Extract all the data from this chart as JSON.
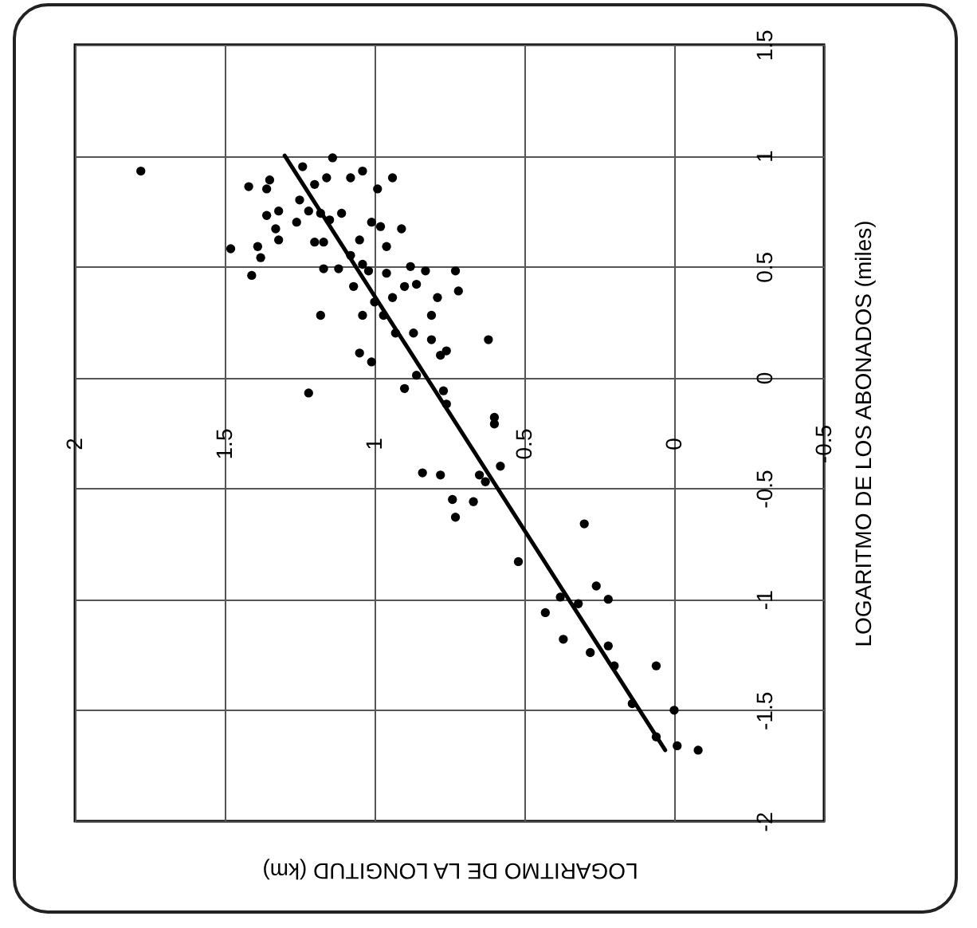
{
  "chart_data": {
    "type": "scatter",
    "xlabel": "LOGARITMO DE LA LONGITUD (km)",
    "ylabel": "LOGARITMO DE LOS ABONADOS (miles)",
    "xlim": [
      2,
      -0.5
    ],
    "xticks": [
      2,
      1.5,
      1,
      0.5,
      0,
      -0.5
    ],
    "ylim": [
      -2,
      1.5
    ],
    "yticks": [
      -2,
      -1.5,
      -1,
      -0.5,
      0,
      0.5,
      1,
      1.5
    ],
    "grid": true,
    "series": [
      {
        "marker": "circle",
        "color": "#000000",
        "x": [
          1.78,
          1.42,
          1.36,
          1.35,
          1.24,
          1.14,
          1.2,
          1.16,
          1.08,
          1.04,
          0.94,
          0.99,
          1.32,
          1.36,
          1.25,
          1.22,
          1.18,
          1.15,
          1.11,
          1.33,
          1.32,
          1.26,
          1.2,
          1.17,
          1.05,
          1.01,
          0.98,
          0.91,
          0.96,
          1.48,
          1.39,
          1.38,
          1.41,
          1.17,
          1.12,
          1.08,
          1.04,
          1.02,
          0.96,
          1.07,
          1.0,
          0.94,
          0.9,
          0.86,
          0.88,
          0.83,
          0.73,
          0.79,
          1.18,
          1.04,
          0.97,
          0.93,
          0.87,
          0.81,
          0.81,
          0.76,
          0.78,
          1.05,
          1.01,
          0.86,
          0.9,
          1.22,
          0.77,
          0.76,
          0.72,
          0.62,
          0.6,
          0.6,
          0.84,
          0.78,
          0.65,
          0.63,
          0.58,
          0.74,
          0.67,
          0.73,
          0.3,
          0.52,
          0.38,
          0.32,
          0.26,
          0.22,
          0.43,
          0.37,
          0.28,
          0.22,
          0.2,
          0.06,
          0.14,
          0.0,
          0.06,
          -0.01,
          -0.08
        ],
        "values": [
          0.93,
          0.86,
          0.85,
          0.89,
          0.95,
          0.99,
          0.87,
          0.9,
          0.9,
          0.93,
          0.9,
          0.85,
          0.75,
          0.73,
          0.8,
          0.75,
          0.74,
          0.71,
          0.74,
          0.67,
          0.62,
          0.7,
          0.61,
          0.61,
          0.62,
          0.7,
          0.68,
          0.67,
          0.59,
          0.58,
          0.59,
          0.54,
          0.46,
          0.49,
          0.49,
          0.55,
          0.51,
          0.48,
          0.47,
          0.41,
          0.34,
          0.36,
          0.41,
          0.42,
          0.5,
          0.48,
          0.48,
          0.36,
          0.28,
          0.28,
          0.28,
          0.2,
          0.2,
          0.28,
          0.17,
          0.12,
          0.1,
          0.11,
          0.07,
          0.01,
          -0.05,
          -0.07,
          -0.06,
          -0.12,
          0.39,
          0.17,
          -0.18,
          -0.21,
          -0.43,
          -0.44,
          -0.44,
          -0.47,
          -0.4,
          -0.55,
          -0.56,
          -0.63,
          -0.66,
          -0.83,
          -0.99,
          -1.02,
          -0.94,
          -1.0,
          -1.06,
          -1.18,
          -1.24,
          -1.21,
          -1.3,
          -1.3,
          -1.47,
          -1.5,
          -1.62,
          -1.66,
          -1.68
        ]
      },
      {
        "type": "line",
        "color": "#000000",
        "x": [
          1.3,
          0.03
        ],
        "values": [
          1.0,
          -1.68
        ]
      }
    ]
  }
}
